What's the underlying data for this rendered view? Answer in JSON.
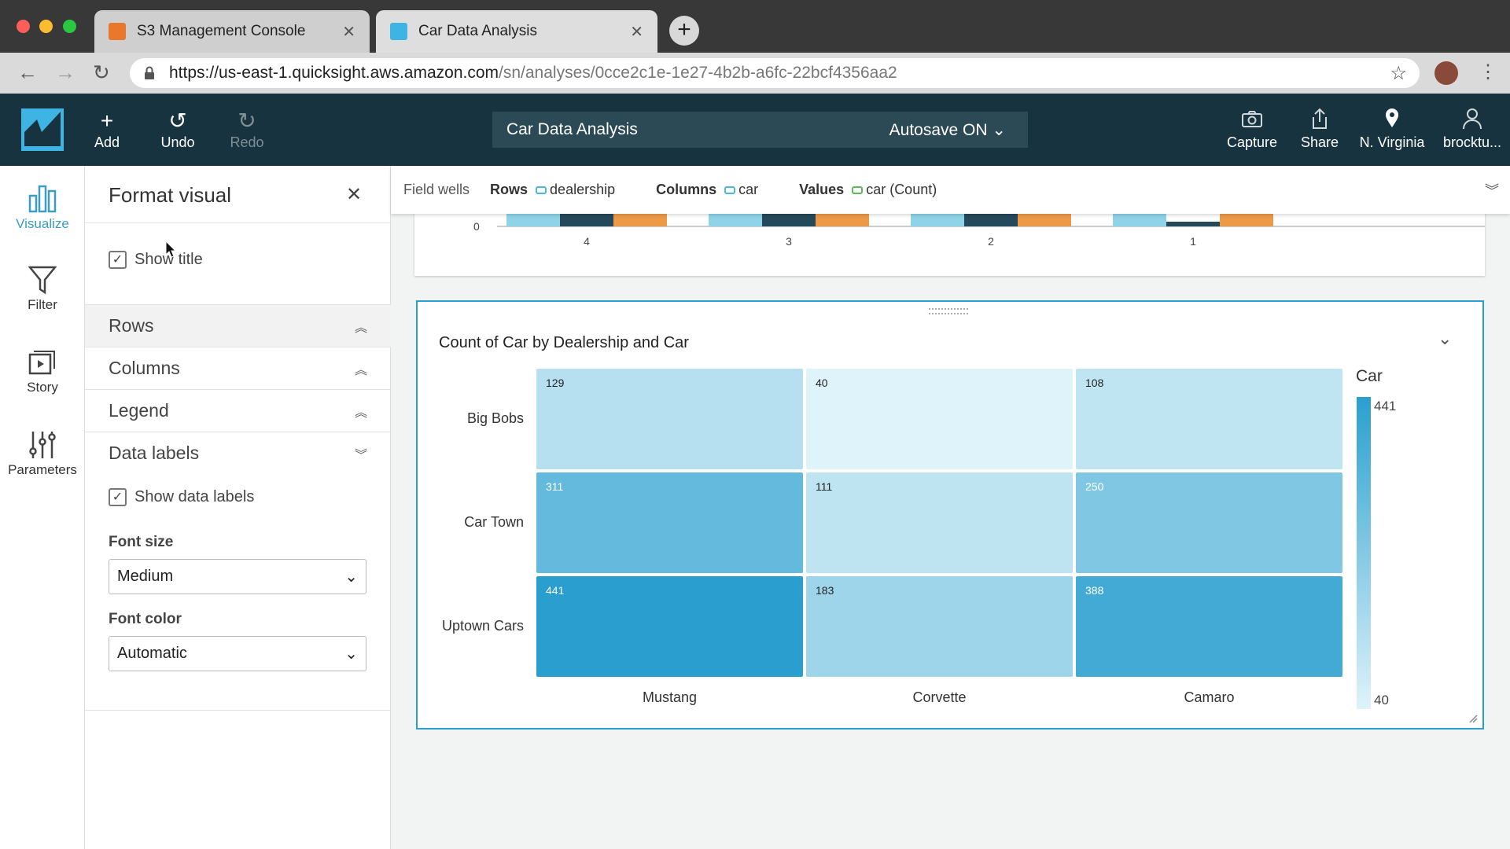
{
  "browser": {
    "tabs": [
      {
        "title": "S3 Management Console",
        "active": false
      },
      {
        "title": "Car Data Analysis",
        "active": true
      }
    ],
    "url_host": "https://us-east-1.quicksight.aws.amazon.com",
    "url_path": "/sn/analyses/0cce2c1e-1e27-4b2b-a6fc-22bcf4356aa2"
  },
  "toolbar": {
    "add": "Add",
    "undo": "Undo",
    "redo": "Redo",
    "analysis_title": "Car Data Analysis",
    "autosave": "Autosave ON",
    "capture": "Capture",
    "share": "Share",
    "region": "N. Virginia",
    "user": "brocktu..."
  },
  "rail": {
    "visualize": "Visualize",
    "filter": "Filter",
    "story": "Story",
    "parameters": "Parameters"
  },
  "panel": {
    "title": "Format visual",
    "show_title": "Show title",
    "sections": [
      "Rows",
      "Columns",
      "Legend",
      "Data labels"
    ],
    "show_data_labels": "Show data labels",
    "font_size_label": "Font size",
    "font_size_value": "Medium",
    "font_color_label": "Font color",
    "font_color_value": "Automatic"
  },
  "field_wells": {
    "label": "Field wells",
    "rows_label": "Rows",
    "rows_value": "dealership",
    "columns_label": "Columns",
    "columns_value": "car",
    "values_label": "Values",
    "values_value": "car (Count)"
  },
  "colors": {
    "accent": "#2a9fcf",
    "header": "#16333f",
    "heat_low": "#def3fa",
    "heat_high": "#2a9fcf"
  },
  "chart_data": [
    {
      "type": "bar",
      "categories": [
        "4",
        "3",
        "2",
        "1"
      ],
      "y_tick_left": "0",
      "y_tick_right": "0",
      "series_colors": [
        "#8fd3e8",
        "#24495a",
        "#ec9a48"
      ],
      "note_visible": "partially scrolled out of view"
    },
    {
      "type": "heatmap",
      "title": "Count of Car by Dealership and Car",
      "rows": [
        "Big Bobs",
        "Car Town",
        "Uptown Cars"
      ],
      "columns": [
        "Mustang",
        "Corvette",
        "Camaro"
      ],
      "values": [
        [
          129,
          40,
          108
        ],
        [
          311,
          111,
          250
        ],
        [
          441,
          183,
          388
        ]
      ],
      "legend": {
        "title": "Car",
        "max": 441,
        "min": 40,
        "max_label": "441",
        "min_label": "40"
      }
    }
  ]
}
